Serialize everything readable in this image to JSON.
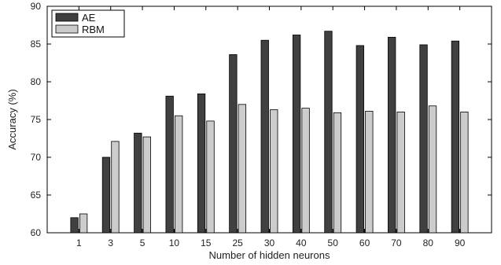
{
  "chart_data": {
    "type": "bar",
    "xlabel": "Number of hidden neurons",
    "ylabel": "Accuracy (%)",
    "ylim": [
      60,
      90
    ],
    "yticks": [
      60,
      65,
      70,
      75,
      80,
      85,
      90
    ],
    "categories": [
      "1",
      "3",
      "5",
      "10",
      "15",
      "25",
      "30",
      "40",
      "50",
      "60",
      "70",
      "80",
      "90"
    ],
    "series": [
      {
        "name": "AE",
        "color": "#404040",
        "values": [
          62.0,
          70.0,
          73.2,
          78.1,
          78.4,
          83.6,
          85.5,
          86.2,
          86.7,
          84.8,
          85.9,
          84.9,
          85.4
        ]
      },
      {
        "name": "RBM",
        "color": "#cccccc",
        "values": [
          62.5,
          72.1,
          72.7,
          75.5,
          74.8,
          77.0,
          76.3,
          76.5,
          75.9,
          76.1,
          76.0,
          76.8,
          76.0
        ]
      }
    ],
    "legend_position": "top-left",
    "grid": false
  }
}
